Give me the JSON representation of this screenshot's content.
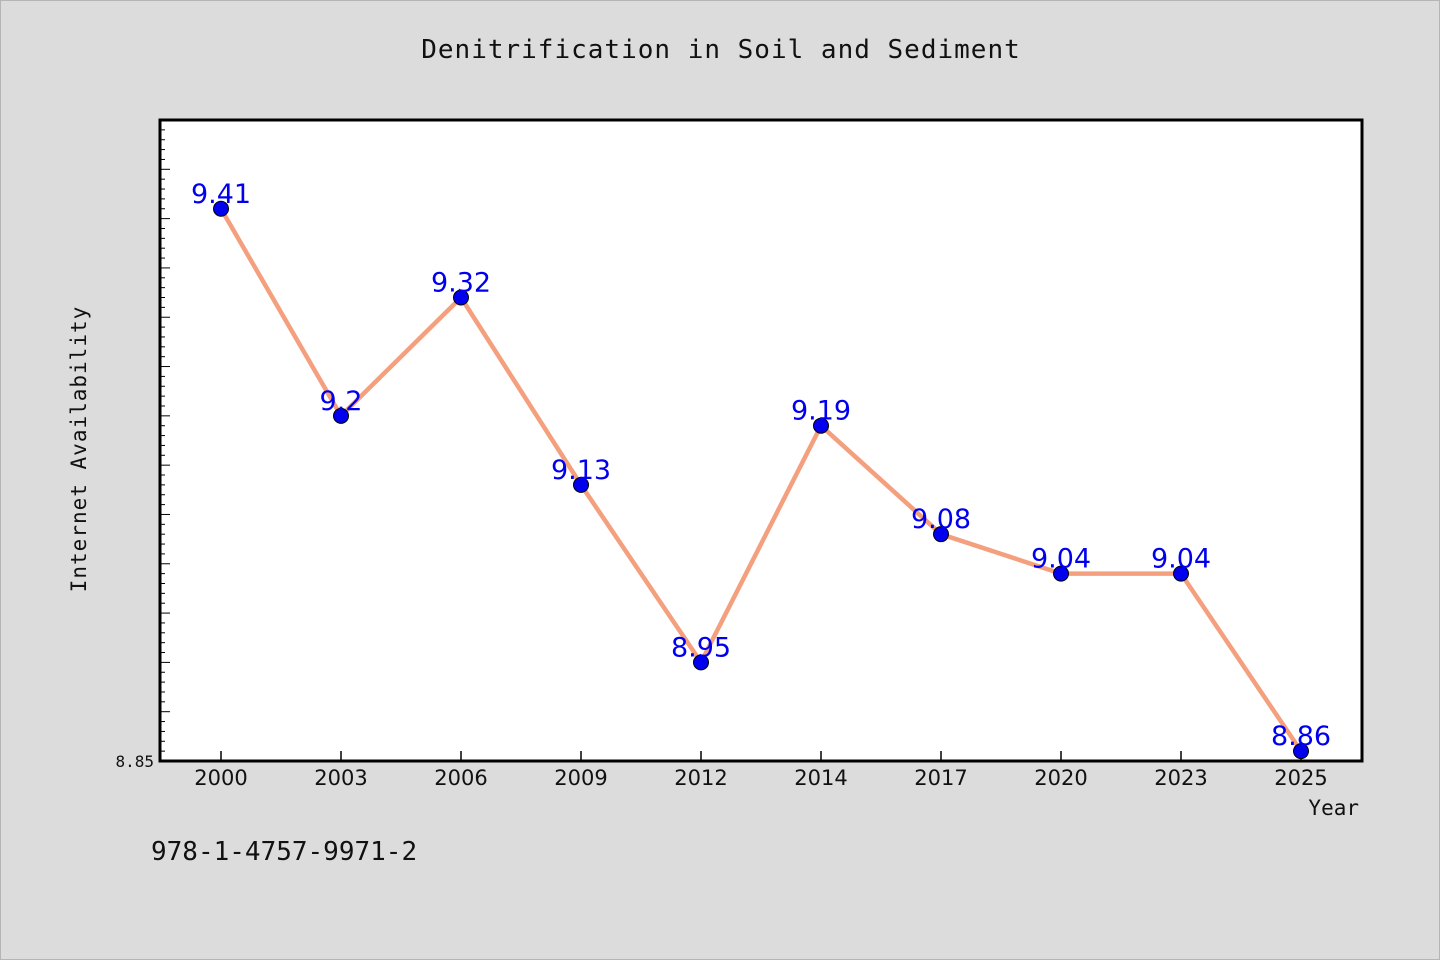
{
  "chart_data": {
    "type": "line",
    "title": "Denitrification in Soil and Sediment",
    "xlabel": "Year",
    "ylabel": "Internet Availability",
    "categories": [
      "2000",
      "2003",
      "2006",
      "2009",
      "2012",
      "2014",
      "2017",
      "2020",
      "2023",
      "2025"
    ],
    "series": [
      {
        "values": [
          9.41,
          9.2,
          9.32,
          9.13,
          8.95,
          9.19,
          9.08,
          9.04,
          9.04,
          8.86
        ]
      }
    ],
    "data_labels": [
      "9.41",
      "9.2",
      "9.32",
      "9.13",
      "8.95",
      "9.19",
      "9.08",
      "9.04",
      "9.04",
      "8.86"
    ],
    "ylim": [
      8.85,
      9.5
    ],
    "y_tick_label": "8.85",
    "grid": false,
    "legend": "none",
    "line_color": "#f4a07e",
    "marker_color": "#0000ee",
    "label_color": "#0000ee"
  },
  "footer": {
    "code": "978-1-4757-9971-2"
  }
}
